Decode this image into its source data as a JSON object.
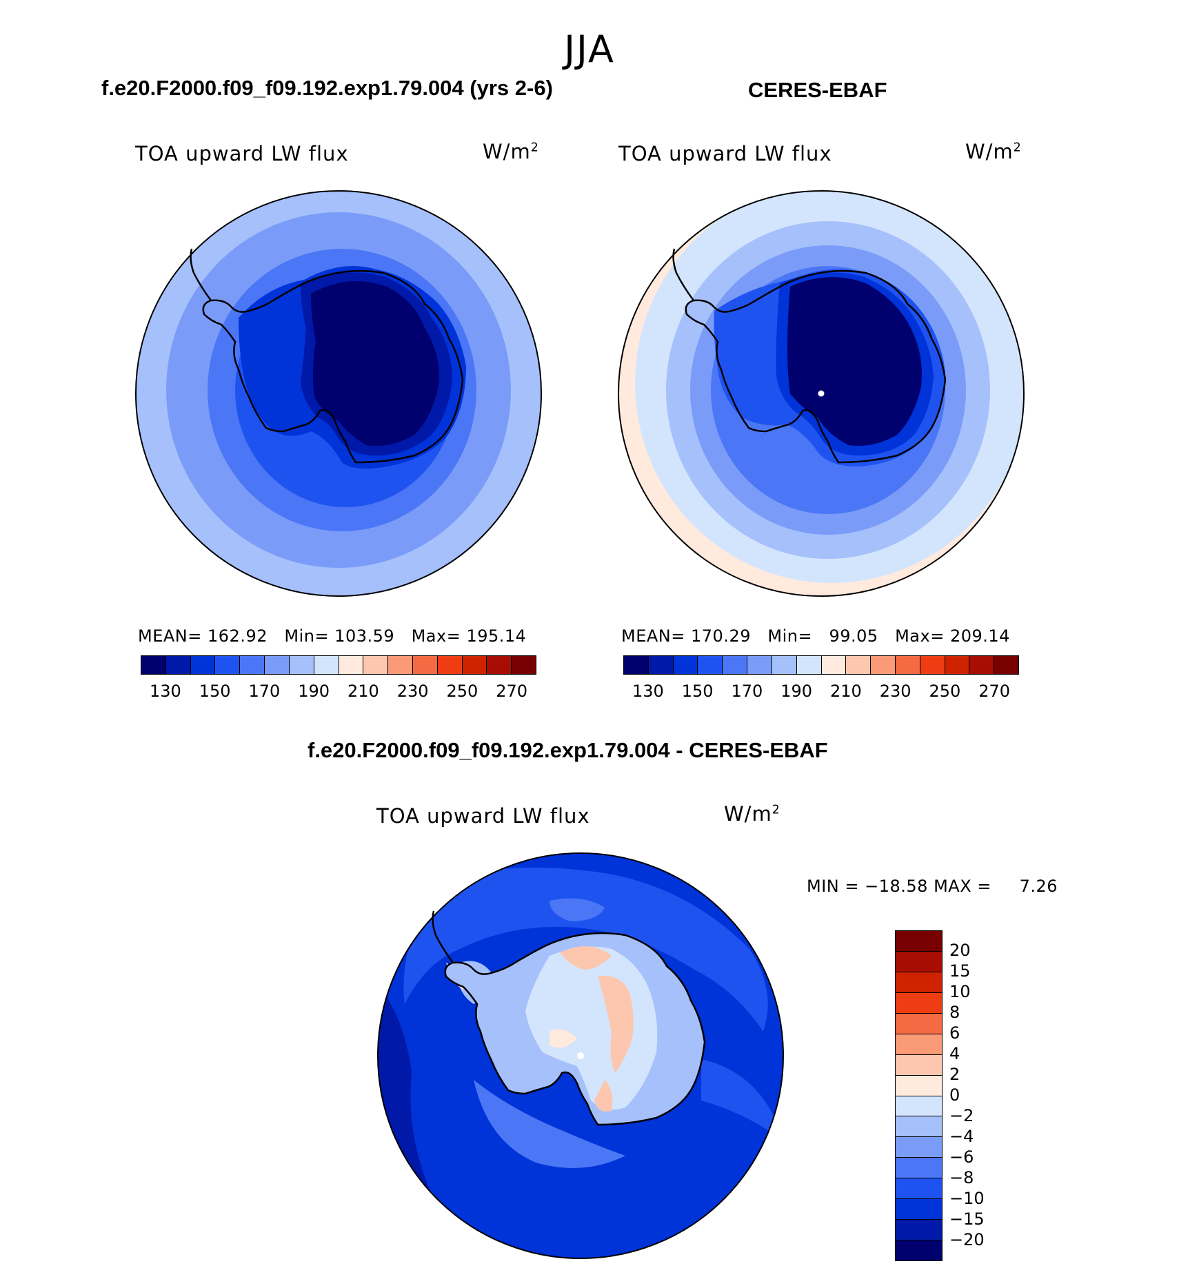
{
  "season": "JJA",
  "variable": "TOA upward LW flux",
  "units_base": "W/m",
  "units_exp": "2",
  "panels": {
    "model": {
      "title": "f.e20.F2000.f09_f09.192.exp1.79.004 (yrs 2-6)",
      "stats": {
        "mean_label": "MEAN=",
        "mean": "162.92",
        "min_label": "Min=",
        "min": "103.59",
        "max_label": "Max=",
        "max": "195.14"
      }
    },
    "obs": {
      "title": "CERES-EBAF",
      "stats": {
        "mean_label": "MEAN=",
        "mean": "170.29",
        "min_label": "Min=",
        "min": "99.05",
        "max_label": "Max=",
        "max": "209.14"
      }
    },
    "diff": {
      "title": "f.e20.F2000.f09_f09.192.exp1.79.004 - CERES-EBAF",
      "min_label": "MIN =",
      "min": "−18.58",
      "max_label": "MAX =",
      "max": "7.26"
    }
  },
  "chart_data": [
    {
      "type": "heatmap",
      "projection": "south polar stereographic",
      "title": "f.e20.F2000.f09_f09.192.exp1.79.004 (yrs 2-6)",
      "field": "TOA upward LW flux",
      "units": "W/m2",
      "mean": 162.92,
      "min": 103.59,
      "max": 195.14,
      "contour_levels": [
        130,
        140,
        150,
        160,
        170,
        180,
        190,
        200,
        210,
        220,
        230,
        240,
        250,
        260,
        270
      ],
      "colorbar_ticks": [
        "130",
        "150",
        "170",
        "190",
        "210",
        "230",
        "250",
        "270"
      ]
    },
    {
      "type": "heatmap",
      "projection": "south polar stereographic",
      "title": "CERES-EBAF",
      "field": "TOA upward LW flux",
      "units": "W/m2",
      "mean": 170.29,
      "min": 99.05,
      "max": 209.14,
      "contour_levels": [
        130,
        140,
        150,
        160,
        170,
        180,
        190,
        200,
        210,
        220,
        230,
        240,
        250,
        260,
        270
      ],
      "colorbar_ticks": [
        "130",
        "150",
        "170",
        "190",
        "210",
        "230",
        "250",
        "270"
      ]
    },
    {
      "type": "heatmap",
      "projection": "south polar stereographic",
      "title": "f.e20.F2000.f09_f09.192.exp1.79.004 - CERES-EBAF",
      "field": "TOA upward LW flux",
      "units": "W/m2",
      "min": -18.58,
      "max": 7.26,
      "contour_levels": [
        -20,
        -15,
        -10,
        -8,
        -6,
        -4,
        -2,
        0,
        2,
        4,
        6,
        8,
        10,
        15,
        20
      ],
      "colorbar_ticks": [
        "20",
        "15",
        "10",
        "8",
        "6",
        "4",
        "2",
        "0",
        "−2",
        "−4",
        "−6",
        "−8",
        "−10",
        "−15",
        "−20"
      ]
    }
  ],
  "palette": [
    "#00006e",
    "#0019a8",
    "#0033d8",
    "#1f53f0",
    "#4b76f5",
    "#7a9cf8",
    "#a6c0fb",
    "#d3e5fd",
    "#ffeadd",
    "#fdc6ae",
    "#fa9a76",
    "#f46a42",
    "#ee3d12",
    "#cf2300",
    "#a70d03",
    "#770000"
  ]
}
